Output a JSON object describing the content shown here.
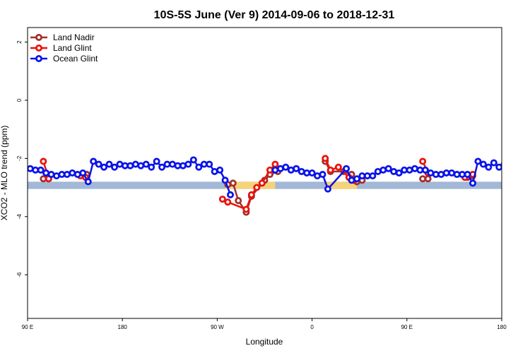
{
  "chart_data": {
    "type": "line",
    "title": "10S-5S June (Ver 9)   2014-09-06 to 2018-12-31",
    "xlabel": "Longitude",
    "ylabel": "XCO2 - MLO trend (ppm)",
    "xlim": [
      0,
      360
    ],
    "ylim": [
      -7.5,
      2.5
    ],
    "x_ticks": [
      {
        "x": 0,
        "label": "90 E"
      },
      {
        "x": 72,
        "label": "180"
      },
      {
        "x": 144,
        "label": "90 W"
      },
      {
        "x": 216,
        "label": "0"
      },
      {
        "x": 288,
        "label": "90 E"
      },
      {
        "x": 360,
        "label": "180"
      }
    ],
    "y_ticks": [
      {
        "y": 2,
        "label": "2"
      },
      {
        "y": 0,
        "label": "0"
      },
      {
        "y": -2,
        "label": "-2"
      },
      {
        "y": -4,
        "label": "-4"
      },
      {
        "y": -6,
        "label": "-6"
      }
    ],
    "legend_position": "top-left",
    "grid": false,
    "background_band": {
      "y_range": [
        -3.05,
        -2.8
      ],
      "color": "#a3b8d6",
      "land_color": "#f5d37a"
    },
    "series": [
      {
        "name": "Land Nadir",
        "color": "#a0302c",
        "points": [
          [
            12,
            -2.7
          ],
          [
            16,
            -2.7
          ],
          [
            45,
            -2.55
          ],
          [
            152,
            -2.9
          ],
          [
            156,
            -2.85
          ],
          [
            160,
            -3.45
          ],
          [
            166,
            -3.85
          ],
          [
            170,
            -3.3
          ],
          [
            180,
            -2.75
          ],
          [
            184,
            -2.55
          ],
          [
            190,
            -2.45
          ],
          [
            226,
            -2.1
          ],
          [
            230,
            -2.45
          ],
          [
            240,
            -2.45
          ],
          [
            246,
            -2.55
          ],
          [
            250,
            -2.8
          ],
          [
            254,
            -2.75
          ],
          [
            300,
            -2.7
          ],
          [
            304,
            -2.7
          ],
          [
            334,
            -2.65
          ],
          [
            338,
            -2.6
          ]
        ]
      },
      {
        "name": "Land Glint",
        "color": "#e8140e",
        "points": [
          [
            12,
            -2.1
          ],
          [
            16,
            -2.7
          ],
          [
            40,
            -2.6
          ],
          [
            44,
            -2.65
          ],
          [
            148,
            -3.4
          ],
          [
            152,
            -3.5
          ],
          [
            166,
            -3.75
          ],
          [
            170,
            -3.25
          ],
          [
            174,
            -3.0
          ],
          [
            178,
            -2.85
          ],
          [
            184,
            -2.4
          ],
          [
            188,
            -2.2
          ],
          [
            226,
            -2.0
          ],
          [
            230,
            -2.4
          ],
          [
            236,
            -2.3
          ],
          [
            244,
            -2.65
          ],
          [
            248,
            -2.75
          ],
          [
            300,
            -2.1
          ],
          [
            304,
            -2.5
          ],
          [
            332,
            -2.65
          ],
          [
            338,
            -2.55
          ]
        ]
      },
      {
        "name": "Ocean Glint",
        "color": "#0a14e8",
        "points": [
          [
            2,
            -2.35
          ],
          [
            6,
            -2.4
          ],
          [
            10,
            -2.4
          ],
          [
            14,
            -2.5
          ],
          [
            18,
            -2.55
          ],
          [
            22,
            -2.6
          ],
          [
            26,
            -2.55
          ],
          [
            30,
            -2.55
          ],
          [
            34,
            -2.5
          ],
          [
            38,
            -2.55
          ],
          [
            42,
            -2.5
          ],
          [
            46,
            -2.8
          ],
          [
            50,
            -2.1
          ],
          [
            54,
            -2.2
          ],
          [
            58,
            -2.3
          ],
          [
            62,
            -2.2
          ],
          [
            66,
            -2.3
          ],
          [
            70,
            -2.2
          ],
          [
            74,
            -2.25
          ],
          [
            78,
            -2.25
          ],
          [
            82,
            -2.2
          ],
          [
            86,
            -2.25
          ],
          [
            90,
            -2.2
          ],
          [
            94,
            -2.3
          ],
          [
            98,
            -2.1
          ],
          [
            102,
            -2.3
          ],
          [
            106,
            -2.2
          ],
          [
            110,
            -2.2
          ],
          [
            114,
            -2.25
          ],
          [
            118,
            -2.25
          ],
          [
            122,
            -2.2
          ],
          [
            126,
            -2.05
          ],
          [
            130,
            -2.3
          ],
          [
            134,
            -2.2
          ],
          [
            138,
            -2.2
          ],
          [
            142,
            -2.45
          ],
          [
            146,
            -2.4
          ],
          [
            150,
            -2.75
          ],
          [
            154,
            -3.25
          ],
          [
            188,
            -2.4
          ],
          [
            192,
            -2.35
          ],
          [
            196,
            -2.3
          ],
          [
            200,
            -2.4
          ],
          [
            204,
            -2.35
          ],
          [
            208,
            -2.45
          ],
          [
            212,
            -2.5
          ],
          [
            216,
            -2.5
          ],
          [
            220,
            -2.6
          ],
          [
            224,
            -2.55
          ],
          [
            228,
            -3.05
          ],
          [
            242,
            -2.35
          ],
          [
            246,
            -2.75
          ],
          [
            250,
            -2.7
          ],
          [
            254,
            -2.6
          ],
          [
            258,
            -2.6
          ],
          [
            262,
            -2.6
          ],
          [
            266,
            -2.45
          ],
          [
            270,
            -2.4
          ],
          [
            274,
            -2.35
          ],
          [
            278,
            -2.45
          ],
          [
            282,
            -2.5
          ],
          [
            286,
            -2.4
          ],
          [
            290,
            -2.4
          ],
          [
            294,
            -2.35
          ],
          [
            298,
            -2.4
          ],
          [
            302,
            -2.4
          ],
          [
            306,
            -2.5
          ],
          [
            310,
            -2.55
          ],
          [
            314,
            -2.55
          ],
          [
            318,
            -2.5
          ],
          [
            322,
            -2.5
          ],
          [
            326,
            -2.55
          ],
          [
            330,
            -2.55
          ],
          [
            334,
            -2.55
          ],
          [
            338,
            -2.85
          ],
          [
            342,
            -2.1
          ],
          [
            346,
            -2.2
          ],
          [
            350,
            -2.3
          ],
          [
            354,
            -2.15
          ],
          [
            358,
            -2.3
          ],
          [
            362,
            -2.2
          ]
        ]
      }
    ]
  }
}
